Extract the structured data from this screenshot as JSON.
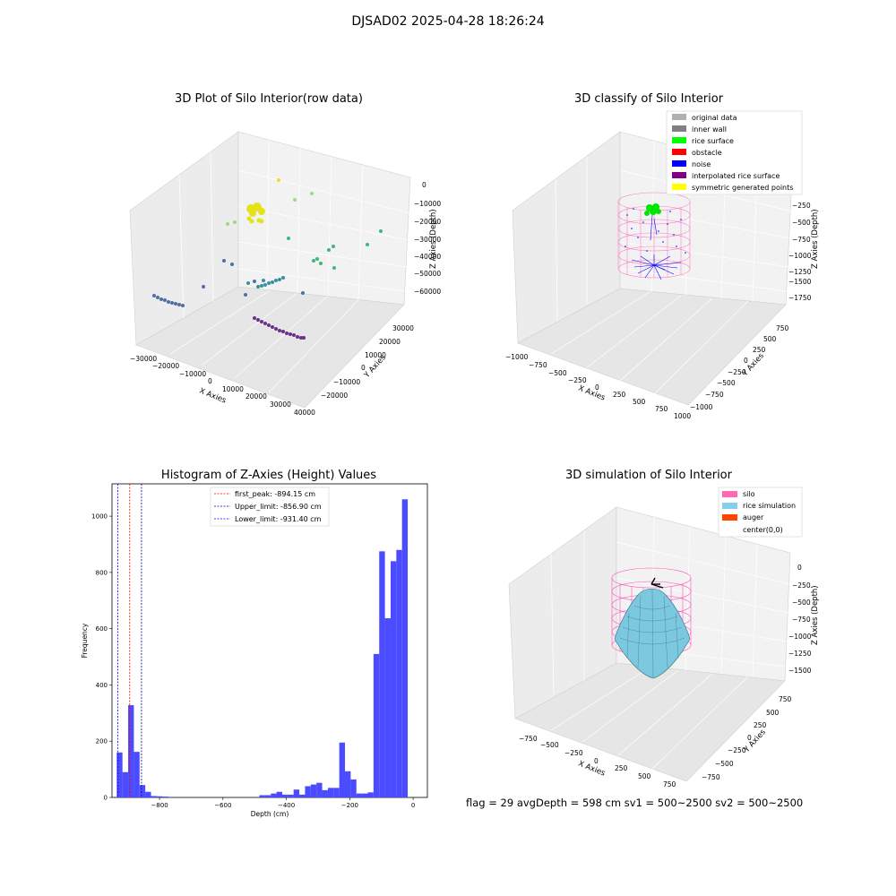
{
  "suptitle": "DJSAD02 2025-04-28 18:26:24",
  "panels": {
    "raw": {
      "title": "3D Plot of Silo Interior(row data)",
      "xlabel": "X Axies",
      "ylabel": "Y Axies",
      "zlabel": "Z Axies (Depth)",
      "xticks": [
        "−30000",
        "−20000",
        "−10000",
        "0",
        "10000",
        "20000",
        "30000",
        "40000"
      ],
      "yticks": [
        "30000",
        "20000",
        "10000",
        "0",
        "−10000",
        "−20000"
      ],
      "zticks": [
        "0",
        "−10000",
        "−20000",
        "−30000",
        "−40000",
        "−50000",
        "−60000"
      ]
    },
    "classify": {
      "title": "3D classify of Silo Interior",
      "xlabel": "X Axies",
      "ylabel": "Y Axies",
      "zlabel": "Z Axies (Depth)",
      "xticks": [
        "−1000",
        "−750",
        "−500",
        "−250",
        "0",
        "250",
        "500",
        "750",
        "1000"
      ],
      "yticks": [
        "750",
        "500",
        "250",
        "0",
        "−250",
        "−500",
        "−750",
        "−1000"
      ],
      "zticks": [
        "−250",
        "−500",
        "−750",
        "−1000",
        "−1250",
        "−1500",
        "−1750"
      ],
      "legend": [
        {
          "label": "original data",
          "color": "#b0b0b0"
        },
        {
          "label": "inner wall",
          "color": "#808080"
        },
        {
          "label": "rice surface",
          "color": "#00ff00"
        },
        {
          "label": "obstacle",
          "color": "#ff0000"
        },
        {
          "label": "noise",
          "color": "#0000ff"
        },
        {
          "label": "interpolated rice surface",
          "color": "#800080"
        },
        {
          "label": "symmetric generated points",
          "color": "#ffff00"
        }
      ]
    },
    "simulation": {
      "title": "3D simulation of Silo Interior",
      "xlabel": "X Axies",
      "ylabel": "Y Axies",
      "zlabel": "Z Axies (Depth)",
      "xticks": [
        "−750",
        "−500",
        "−250",
        "0",
        "250",
        "500",
        "750"
      ],
      "yticks": [
        "750",
        "500",
        "250",
        "0",
        "−250",
        "−500",
        "−750"
      ],
      "zticks": [
        "0",
        "−250",
        "−500",
        "−750",
        "−1000",
        "−1250",
        "−1500"
      ],
      "legend": [
        {
          "label": "silo",
          "color": "#ff69b4"
        },
        {
          "label": "rice simulation",
          "color": "#87ceeb"
        },
        {
          "label": "auger",
          "color": "#ff4500"
        },
        {
          "label": "center(0,0)",
          "color": ""
        }
      ]
    }
  },
  "status": "flag = 29  avgDepth = 598 cm  sv1 = 500~2500  sv2 = 500~2500",
  "chart_data": {
    "type": "bar",
    "title": "Histogram of Z-Axies (Height) Values",
    "xlabel": "Depth (cm)",
    "ylabel": "Frequency",
    "xlim": [
      -950,
      45
    ],
    "ylim": [
      0,
      1115
    ],
    "xticks": [
      -800,
      -600,
      -400,
      -200,
      0
    ],
    "xtick_labels": [
      "−800",
      "−600",
      "−400",
      "−200",
      "0"
    ],
    "yticks": [
      0,
      200,
      400,
      600,
      800,
      1000
    ],
    "bar_color": "#4b4bff",
    "bins": [
      {
        "x0": -935,
        "x1": -917,
        "v": 160
      },
      {
        "x0": -917,
        "x1": -899,
        "v": 90
      },
      {
        "x0": -899,
        "x1": -881,
        "v": 328
      },
      {
        "x0": -881,
        "x1": -863,
        "v": 162
      },
      {
        "x0": -863,
        "x1": -845,
        "v": 44
      },
      {
        "x0": -845,
        "x1": -827,
        "v": 20
      },
      {
        "x0": -827,
        "x1": -809,
        "v": 5
      },
      {
        "x0": -809,
        "x1": -791,
        "v": 4
      },
      {
        "x0": -791,
        "x1": -773,
        "v": 3
      },
      {
        "x0": -773,
        "x1": -755,
        "v": 2
      },
      {
        "x0": -485,
        "x1": -467,
        "v": 8
      },
      {
        "x0": -467,
        "x1": -449,
        "v": 8
      },
      {
        "x0": -449,
        "x1": -431,
        "v": 14
      },
      {
        "x0": -431,
        "x1": -413,
        "v": 20
      },
      {
        "x0": -413,
        "x1": -395,
        "v": 10
      },
      {
        "x0": -395,
        "x1": -377,
        "v": 10
      },
      {
        "x0": -377,
        "x1": -359,
        "v": 28
      },
      {
        "x0": -359,
        "x1": -341,
        "v": 10
      },
      {
        "x0": -341,
        "x1": -323,
        "v": 40
      },
      {
        "x0": -323,
        "x1": -305,
        "v": 46
      },
      {
        "x0": -305,
        "x1": -287,
        "v": 52
      },
      {
        "x0": -287,
        "x1": -269,
        "v": 26
      },
      {
        "x0": -269,
        "x1": -251,
        "v": 34
      },
      {
        "x0": -251,
        "x1": -233,
        "v": 34
      },
      {
        "x0": -233,
        "x1": -215,
        "v": 195
      },
      {
        "x0": -215,
        "x1": -197,
        "v": 93
      },
      {
        "x0": -197,
        "x1": -179,
        "v": 64
      },
      {
        "x0": -179,
        "x1": -161,
        "v": 14
      },
      {
        "x0": -161,
        "x1": -143,
        "v": 14
      },
      {
        "x0": -143,
        "x1": -125,
        "v": 18
      },
      {
        "x0": -125,
        "x1": -107,
        "v": 510
      },
      {
        "x0": -107,
        "x1": -89,
        "v": 875
      },
      {
        "x0": -89,
        "x1": -71,
        "v": 637
      },
      {
        "x0": -71,
        "x1": -53,
        "v": 840
      },
      {
        "x0": -53,
        "x1": -35,
        "v": 880
      },
      {
        "x0": -35,
        "x1": -17,
        "v": 1060
      }
    ],
    "vlines": [
      {
        "label": "first_peak: -894.15 cm",
        "x": -894.15,
        "color": "#ff0000"
      },
      {
        "label": "Upper_limit: -856.90 cm",
        "x": -856.9,
        "color": "#00008b"
      },
      {
        "label": "Lower_limit: -931.40 cm",
        "x": -931.4,
        "color": "#0000ff"
      }
    ]
  }
}
